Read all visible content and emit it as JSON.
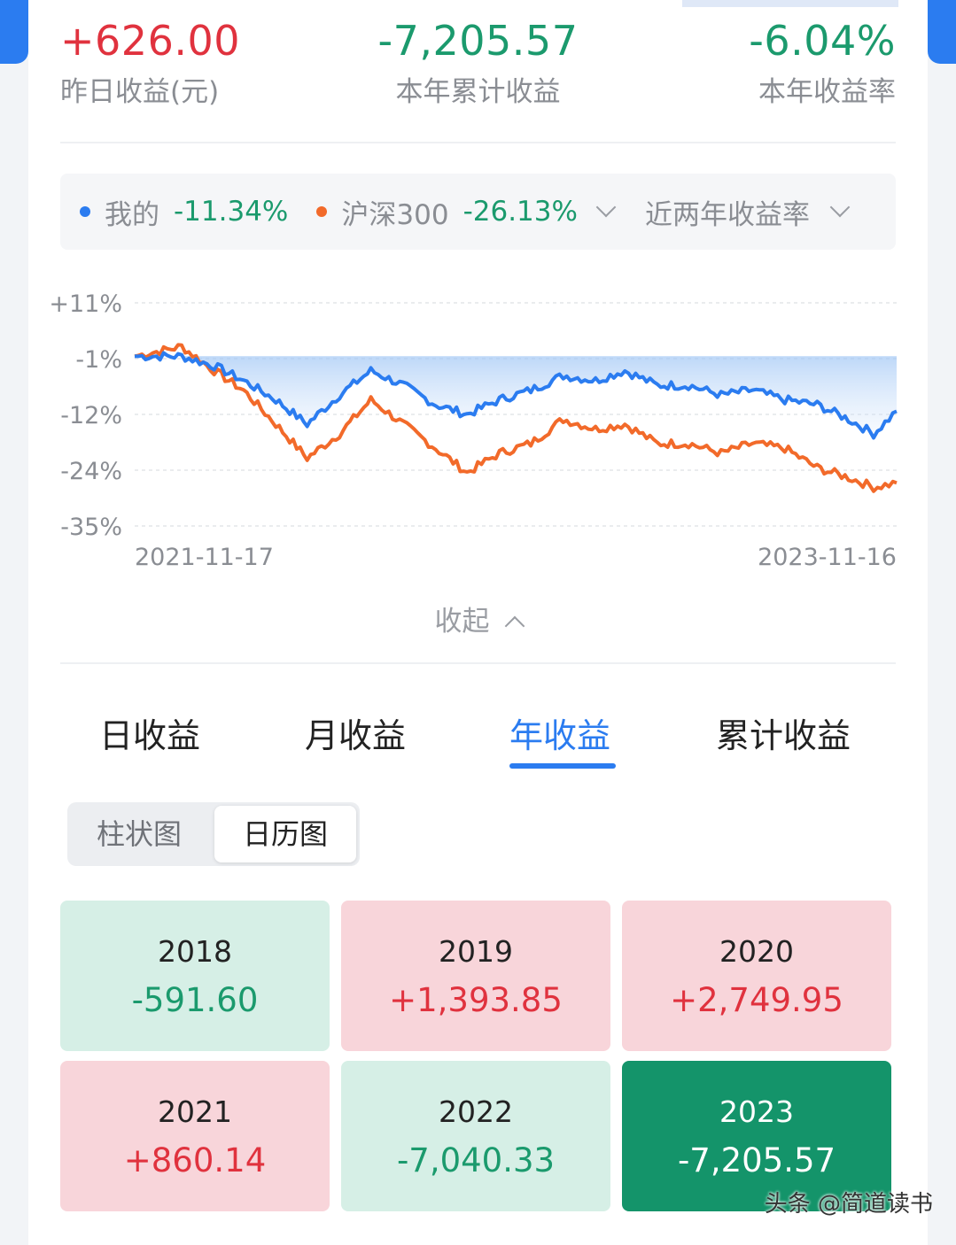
{
  "summary": {
    "yesterday": {
      "value": "+626.00",
      "label": "昨日收益(元)"
    },
    "ytd": {
      "value": "-7,205.57",
      "label": "本年累计收益"
    },
    "ytd_rate": {
      "value": "-6.04%",
      "label": "本年收益率"
    }
  },
  "legend": {
    "mine": {
      "name": "我的",
      "value": "-11.34%"
    },
    "benchmark": {
      "name": "沪深300",
      "value": "-26.13%"
    },
    "period": "近两年收益率"
  },
  "colors": {
    "mine": "#2b7cf0",
    "benchmark": "#f26a2a",
    "gain": "#e0323e",
    "loss": "#1b9a6d"
  },
  "chart_data": {
    "type": "line",
    "y_tick_labels": [
      "+11%",
      "-1%",
      "-12%",
      "-24%",
      "-35%"
    ],
    "x_tick_labels": [
      "2021-11-17",
      "2023-11-16"
    ],
    "ylim": [
      -35,
      11
    ],
    "x": [
      "2021-11-17",
      "2022-01-01",
      "2022-02-01",
      "2022-03-01",
      "2022-04-01",
      "2022-05-01",
      "2022-06-01",
      "2022-07-01",
      "2022-08-01",
      "2022-09-01",
      "2022-10-01",
      "2022-11-01",
      "2022-12-01",
      "2023-01-01",
      "2023-02-01",
      "2023-03-01",
      "2023-04-01",
      "2023-05-01",
      "2023-06-01",
      "2023-07-01",
      "2023-08-01",
      "2023-09-01",
      "2023-10-01",
      "2023-10-25",
      "2023-11-16"
    ],
    "series": [
      {
        "name": "我的",
        "values": [
          0,
          0,
          -2,
          -5,
          -9,
          -14,
          -8,
          -3,
          -6,
          -10,
          -12,
          -9,
          -7,
          -4,
          -5,
          -3,
          -6,
          -6,
          -8,
          -7,
          -9,
          -10,
          -13,
          -16,
          -11.34
        ]
      },
      {
        "name": "沪深300",
        "values": [
          0,
          2,
          -3,
          -7,
          -14,
          -21,
          -16,
          -9,
          -14,
          -19,
          -24,
          -20,
          -18,
          -13,
          -15,
          -14,
          -18,
          -18,
          -20,
          -18,
          -19,
          -23,
          -25,
          -27,
          -26.13
        ]
      }
    ],
    "grid": true
  },
  "collapse_label": "收起",
  "tabs": [
    "日收益",
    "月收益",
    "年收益",
    "累计收益"
  ],
  "active_tab": "年收益",
  "view_toggle": {
    "bar": "柱状图",
    "calendar": "日历图"
  },
  "years": [
    {
      "year": "2018",
      "amount": "-591.60"
    },
    {
      "year": "2019",
      "amount": "+1,393.85"
    },
    {
      "year": "2020",
      "amount": "+2,749.95"
    },
    {
      "year": "2021",
      "amount": "+860.14"
    },
    {
      "year": "2022",
      "amount": "-7,040.33"
    },
    {
      "year": "2023",
      "amount": "-7,205.57"
    }
  ],
  "watermark": "头条 @简道读书"
}
